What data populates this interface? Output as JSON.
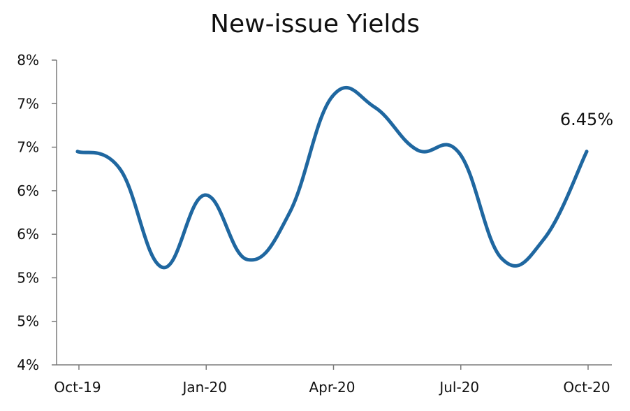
{
  "chart_data": {
    "type": "line",
    "title": "New-issue Yields",
    "xlabel": "",
    "ylabel": "",
    "x_tick_labels": [
      "Oct-19",
      "Jan-20",
      "Apr-20",
      "Jul-20",
      "Oct-20"
    ],
    "y_tick_labels": [
      "4%",
      "5%",
      "5%",
      "6%",
      "6%",
      "7%",
      "7%",
      "8%"
    ],
    "ylim": [
      4.0,
      7.5
    ],
    "x": [
      "Oct-19",
      "Nov-19",
      "Dec-19",
      "Jan-20",
      "Feb-20",
      "Mar-20",
      "Apr-20",
      "May-20",
      "Jun-20",
      "Jul-20",
      "Aug-20",
      "Sep-20",
      "Oct-20"
    ],
    "series": [
      {
        "values": [
          6.45,
          6.25,
          5.12,
          5.95,
          5.21,
          5.75,
          7.08,
          6.96,
          6.47,
          6.43,
          5.22,
          5.45,
          6.45
        ],
        "color": "#1f67a0"
      }
    ],
    "annotations": [
      {
        "text": "6.45%",
        "point": "Oct-20"
      }
    ],
    "grid": false,
    "legend": "none"
  }
}
